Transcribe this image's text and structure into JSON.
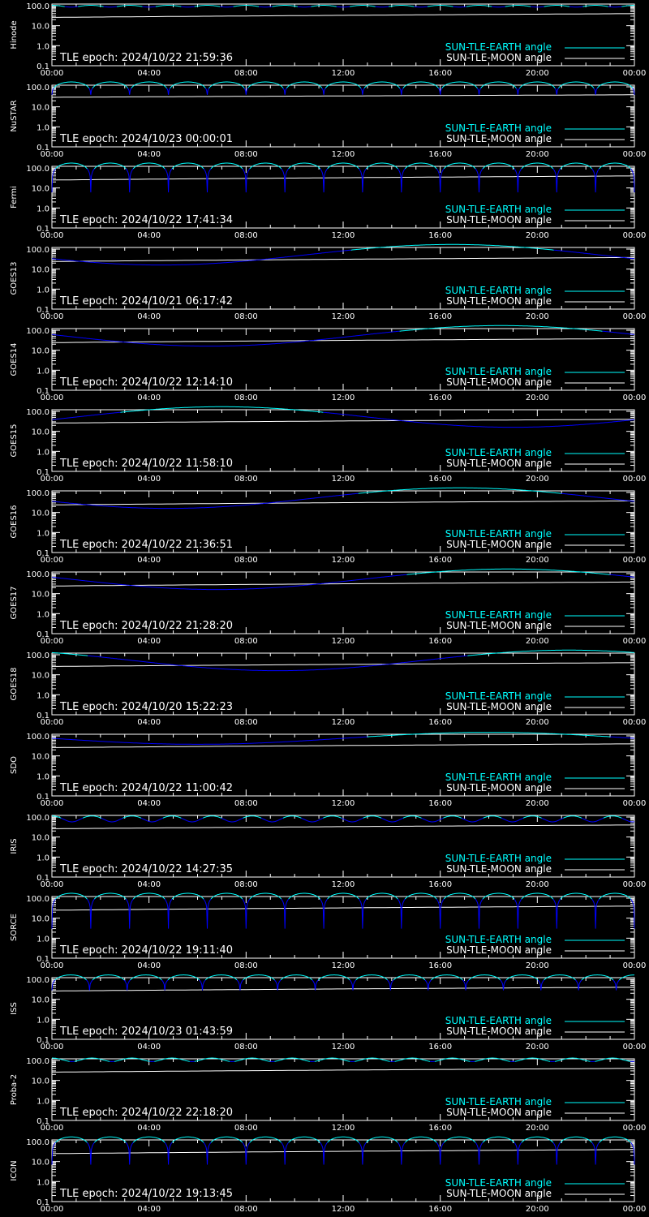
{
  "colors": {
    "background": "#000000",
    "axis": "#ffffff",
    "earth_high": "#00ffff",
    "earth_low": "#0000ff",
    "moon": "#ffffff"
  },
  "chart_data": [
    {
      "type": "line",
      "ylabel": "Hinode",
      "epoch_label": "TLE epoch: 2024/10/22 21:59:36",
      "x_ticks": [
        "00:00",
        "04:00",
        "08:00",
        "12:00",
        "16:00",
        "20:00",
        "00:00"
      ],
      "y_ticks": [
        "0.1",
        "1.0",
        "10.0",
        "100.0"
      ],
      "yscale": "log",
      "ylim": [
        0.1,
        100
      ],
      "xlim": [
        0,
        24
      ],
      "series": [
        {
          "name": "SUN-TLE-EARTH angle",
          "kind": "oscillating",
          "mean": 95,
          "amplitude": 10,
          "period_hours": 1.6
        },
        {
          "name": "SUN-TLE-MOON angle",
          "kind": "moon",
          "start": 26,
          "end": 40
        }
      ]
    },
    {
      "type": "line",
      "ylabel": "NuSTAR",
      "epoch_label": "TLE epoch: 2024/10/23 00:00:01",
      "x_ticks": [
        "00:00",
        "04:00",
        "08:00",
        "12:00",
        "16:00",
        "20:00",
        "00:00"
      ],
      "y_ticks": [
        "0.1",
        "1.0",
        "10.0",
        "100.0"
      ],
      "yscale": "log",
      "ylim": [
        0.1,
        100
      ],
      "xlim": [
        0,
        24
      ],
      "series": [
        {
          "name": "SUN-TLE-EARTH angle",
          "kind": "arches",
          "max": 175,
          "min": 40,
          "period_hours": 1.6
        },
        {
          "name": "SUN-TLE-MOON angle",
          "kind": "moon",
          "start": 30,
          "end": 40
        }
      ]
    },
    {
      "type": "line",
      "ylabel": "Fermi",
      "epoch_label": "TLE epoch: 2024/10/22 17:41:34",
      "x_ticks": [
        "00:00",
        "04:00",
        "08:00",
        "12:00",
        "16:00",
        "20:00",
        "00:00"
      ],
      "y_ticks": [
        "0.1",
        "1.0",
        "10.0",
        "100.0"
      ],
      "yscale": "log",
      "ylim": [
        0.1,
        100
      ],
      "xlim": [
        0,
        24
      ],
      "series": [
        {
          "name": "SUN-TLE-EARTH angle",
          "kind": "arches",
          "max": 175,
          "min": 6,
          "period_hours": 1.6
        },
        {
          "name": "SUN-TLE-MOON angle",
          "kind": "moon",
          "start": 25,
          "end": 40
        }
      ]
    },
    {
      "type": "line",
      "ylabel": "GOES13",
      "epoch_label": "TLE epoch: 2024/10/21 06:17:42",
      "x_ticks": [
        "00:00",
        "04:00",
        "08:00",
        "12:00",
        "16:00",
        "20:00",
        "00:00"
      ],
      "y_ticks": [
        "0.1",
        "1.0",
        "10.0",
        "100.0"
      ],
      "yscale": "log",
      "ylim": [
        0.1,
        100
      ],
      "xlim": [
        0,
        24
      ],
      "series": [
        {
          "name": "SUN-TLE-EARTH angle",
          "kind": "geo",
          "min_hour": 4.5,
          "min_value": 16,
          "max_value": 170
        },
        {
          "name": "SUN-TLE-MOON angle",
          "kind": "moon",
          "start": 24,
          "end": 38
        }
      ]
    },
    {
      "type": "line",
      "ylabel": "GOES14",
      "epoch_label": "TLE epoch: 2024/10/22 12:14:10",
      "x_ticks": [
        "00:00",
        "04:00",
        "08:00",
        "12:00",
        "16:00",
        "20:00",
        "00:00"
      ],
      "y_ticks": [
        "0.1",
        "1.0",
        "10.0",
        "100.0"
      ],
      "yscale": "log",
      "ylim": [
        0.1,
        100
      ],
      "xlim": [
        0,
        24
      ],
      "series": [
        {
          "name": "SUN-TLE-EARTH angle",
          "kind": "geo",
          "min_hour": 6.5,
          "min_value": 16,
          "max_value": 170
        },
        {
          "name": "SUN-TLE-MOON angle",
          "kind": "moon",
          "start": 24,
          "end": 38
        }
      ]
    },
    {
      "type": "line",
      "ylabel": "GOES15",
      "epoch_label": "TLE epoch: 2024/10/22 11:58:10",
      "x_ticks": [
        "00:00",
        "04:00",
        "08:00",
        "12:00",
        "16:00",
        "20:00",
        "00:00"
      ],
      "y_ticks": [
        "0.1",
        "1.0",
        "10.0",
        "100.0"
      ],
      "yscale": "log",
      "ylim": [
        0.1,
        100
      ],
      "xlim": [
        0,
        24
      ],
      "series": [
        {
          "name": "SUN-TLE-EARTH angle",
          "kind": "geo",
          "min_hour": 19.0,
          "min_value": 16,
          "max_value": 170
        },
        {
          "name": "SUN-TLE-MOON angle",
          "kind": "moon",
          "start": 26,
          "end": 40
        }
      ]
    },
    {
      "type": "line",
      "ylabel": "GOES16",
      "epoch_label": "TLE epoch: 2024/10/22 21:36:51",
      "x_ticks": [
        "00:00",
        "04:00",
        "08:00",
        "12:00",
        "16:00",
        "20:00",
        "00:00"
      ],
      "y_ticks": [
        "0.1",
        "1.0",
        "10.0",
        "100.0"
      ],
      "yscale": "log",
      "ylim": [
        0.1,
        100
      ],
      "xlim": [
        0,
        24
      ],
      "series": [
        {
          "name": "SUN-TLE-EARTH angle",
          "kind": "geo",
          "min_hour": 4.8,
          "min_value": 16,
          "max_value": 170
        },
        {
          "name": "SUN-TLE-MOON angle",
          "kind": "moon",
          "start": 24,
          "end": 38
        }
      ]
    },
    {
      "type": "line",
      "ylabel": "GOES17",
      "epoch_label": "TLE epoch: 2024/10/22 21:28:20",
      "x_ticks": [
        "00:00",
        "04:00",
        "08:00",
        "12:00",
        "16:00",
        "20:00",
        "00:00"
      ],
      "y_ticks": [
        "0.1",
        "1.0",
        "10.0",
        "100.0"
      ],
      "yscale": "log",
      "ylim": [
        0.1,
        100
      ],
      "xlim": [
        0,
        24
      ],
      "series": [
        {
          "name": "SUN-TLE-EARTH angle",
          "kind": "geo",
          "min_hour": 6.8,
          "min_value": 16,
          "max_value": 170
        },
        {
          "name": "SUN-TLE-MOON angle",
          "kind": "moon",
          "start": 24,
          "end": 38
        }
      ]
    },
    {
      "type": "line",
      "ylabel": "GOES18",
      "epoch_label": "TLE epoch: 2024/10/20 15:22:23",
      "x_ticks": [
        "00:00",
        "04:00",
        "08:00",
        "12:00",
        "16:00",
        "20:00",
        "00:00"
      ],
      "y_ticks": [
        "0.1",
        "1.0",
        "10.0",
        "100.0"
      ],
      "yscale": "log",
      "ylim": [
        0.1,
        100
      ],
      "xlim": [
        0,
        24
      ],
      "series": [
        {
          "name": "SUN-TLE-EARTH angle",
          "kind": "geo",
          "min_hour": 9.3,
          "min_value": 16,
          "max_value": 170
        },
        {
          "name": "SUN-TLE-MOON angle",
          "kind": "moon",
          "start": 26,
          "end": 40
        }
      ]
    },
    {
      "type": "line",
      "ylabel": "SDO",
      "epoch_label": "TLE epoch: 2024/10/22 11:00:42",
      "x_ticks": [
        "00:00",
        "04:00",
        "08:00",
        "12:00",
        "16:00",
        "20:00",
        "00:00"
      ],
      "y_ticks": [
        "0.1",
        "1.0",
        "10.0",
        "100.0"
      ],
      "yscale": "log",
      "ylim": [
        0.1,
        100
      ],
      "xlim": [
        0,
        24
      ],
      "series": [
        {
          "name": "SUN-TLE-EARTH angle",
          "kind": "geo",
          "min_hour": 6.0,
          "min_value": 38,
          "max_value": 150
        },
        {
          "name": "SUN-TLE-MOON angle",
          "kind": "moon",
          "start": 26,
          "end": 40
        }
      ]
    },
    {
      "type": "line",
      "ylabel": "IRIS",
      "epoch_label": "TLE epoch: 2024/10/22 14:27:35",
      "x_ticks": [
        "00:00",
        "04:00",
        "08:00",
        "12:00",
        "16:00",
        "20:00",
        "00:00"
      ],
      "y_ticks": [
        "0.1",
        "1.0",
        "10.0",
        "100.0"
      ],
      "yscale": "log",
      "ylim": [
        0.1,
        100
      ],
      "xlim": [
        0,
        24
      ],
      "series": [
        {
          "name": "SUN-TLE-EARTH angle",
          "kind": "oscillating",
          "mean": 85,
          "amplitude": 28,
          "period_hours": 1.65
        },
        {
          "name": "SUN-TLE-MOON angle",
          "kind": "moon",
          "start": 26,
          "end": 40
        }
      ]
    },
    {
      "type": "line",
      "ylabel": "SORCE",
      "epoch_label": "TLE epoch: 2024/10/22 19:11:40",
      "x_ticks": [
        "00:00",
        "04:00",
        "08:00",
        "12:00",
        "16:00",
        "20:00",
        "00:00"
      ],
      "y_ticks": [
        "0.1",
        "1.0",
        "10.0",
        "100.0"
      ],
      "yscale": "log",
      "ylim": [
        0.1,
        100
      ],
      "xlim": [
        0,
        24
      ],
      "series": [
        {
          "name": "SUN-TLE-EARTH angle",
          "kind": "arches",
          "max": 175,
          "min": 3,
          "period_hours": 1.6
        },
        {
          "name": "SUN-TLE-MOON angle",
          "kind": "moon",
          "start": 25,
          "end": 40
        }
      ]
    },
    {
      "type": "line",
      "ylabel": "ISS",
      "epoch_label": "TLE epoch: 2024/10/23 01:43:59",
      "x_ticks": [
        "00:00",
        "04:00",
        "08:00",
        "12:00",
        "16:00",
        "20:00",
        "00:00"
      ],
      "y_ticks": [
        "0.1",
        "1.0",
        "10.0",
        "100.0"
      ],
      "yscale": "log",
      "ylim": [
        0.1,
        100
      ],
      "xlim": [
        0,
        24
      ],
      "series": [
        {
          "name": "SUN-TLE-EARTH angle",
          "kind": "arches",
          "max": 165,
          "min": 28,
          "period_hours": 1.55
        },
        {
          "name": "SUN-TLE-MOON angle",
          "kind": "moon",
          "start": 26,
          "end": 40
        }
      ]
    },
    {
      "type": "line",
      "ylabel": "Proba-2",
      "epoch_label": "TLE epoch: 2024/10/22 22:18:20",
      "x_ticks": [
        "00:00",
        "04:00",
        "08:00",
        "12:00",
        "16:00",
        "20:00",
        "00:00"
      ],
      "y_ticks": [
        "0.1",
        "1.0",
        "10.0",
        "100.0"
      ],
      "yscale": "log",
      "ylim": [
        0.1,
        100
      ],
      "xlim": [
        0,
        24
      ],
      "series": [
        {
          "name": "SUN-TLE-EARTH angle",
          "kind": "oscillating",
          "mean": 110,
          "amplitude": 22,
          "period_hours": 1.65
        },
        {
          "name": "SUN-TLE-MOON angle",
          "kind": "moon",
          "start": 26,
          "end": 40
        }
      ]
    },
    {
      "type": "line",
      "ylabel": "ICON",
      "epoch_label": "TLE epoch: 2024/10/22 19:13:45",
      "x_ticks": [
        "00:00",
        "04:00",
        "08:00",
        "12:00",
        "16:00",
        "20:00",
        "00:00"
      ],
      "y_ticks": [
        "0.1",
        "1.0",
        "10.0",
        "100.0"
      ],
      "yscale": "log",
      "ylim": [
        0.1,
        100
      ],
      "xlim": [
        0,
        24
      ],
      "series": [
        {
          "name": "SUN-TLE-EARTH angle",
          "kind": "arches",
          "max": 170,
          "min": 7,
          "period_hours": 1.6
        },
        {
          "name": "SUN-TLE-MOON angle",
          "kind": "moon",
          "start": 25,
          "end": 40
        }
      ]
    }
  ]
}
